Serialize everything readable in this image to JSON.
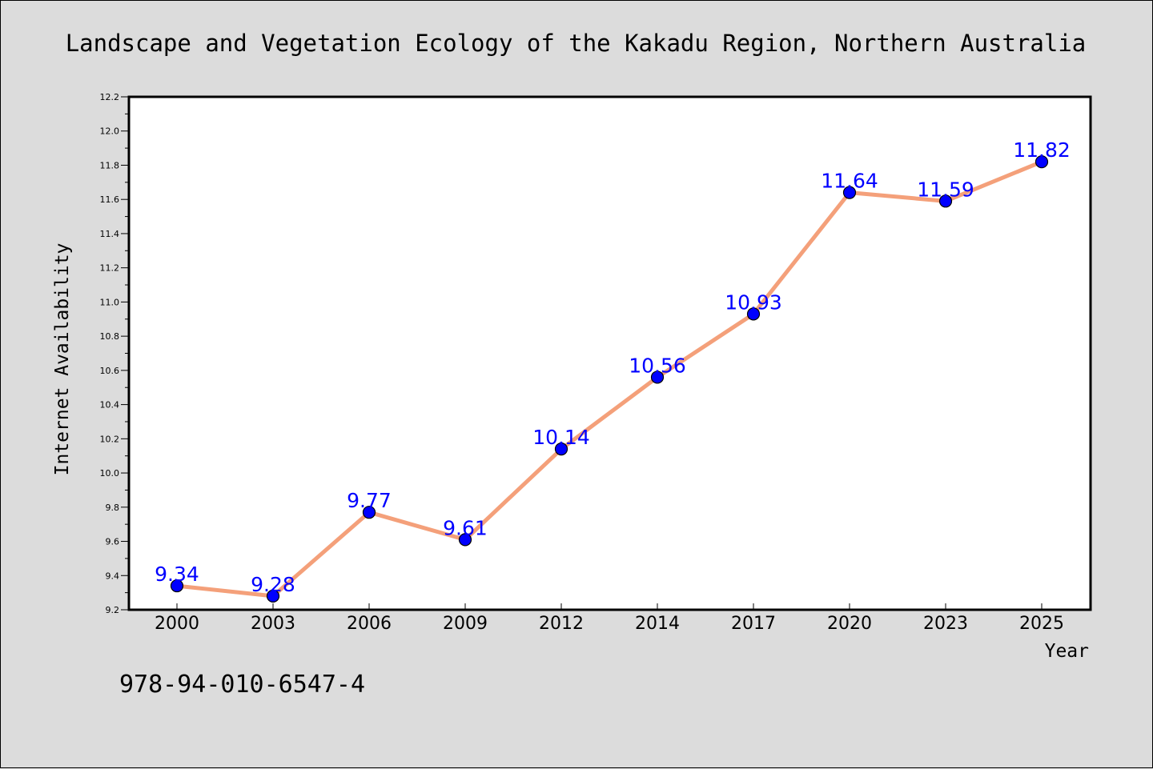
{
  "colors": {
    "background": "#dcdcdc",
    "plot_background": "#ffffff",
    "line": "#f4a07a",
    "marker": "#0000ff",
    "data_label": "#0000ff"
  },
  "footer": {
    "isbn": "978-94-010-6547-4"
  },
  "chart_data": {
    "type": "line",
    "title": "Landscape and Vegetation Ecology of the Kakadu Region, Northern Australia",
    "xlabel": "Year",
    "ylabel": "Internet Availability",
    "categories": [
      "2000",
      "2003",
      "2006",
      "2009",
      "2012",
      "2014",
      "2017",
      "2020",
      "2023",
      "2025"
    ],
    "series": [
      {
        "values": [
          9.34,
          9.28,
          9.77,
          9.61,
          10.14,
          10.56,
          10.93,
          11.64,
          11.59,
          11.82
        ]
      }
    ],
    "data_labels": [
      "9.34",
      "9.28",
      "9.77",
      "9.61",
      "10.14",
      "10.56",
      "10.93",
      "11.64",
      "11.59",
      "11.82"
    ],
    "ylim": [
      9.2,
      12.2
    ],
    "yticks": [
      "9.2",
      "9.4",
      "9.6",
      "9.8",
      "10.0",
      "10.2",
      "10.4",
      "10.6",
      "10.8",
      "11.0",
      "11.2",
      "11.4",
      "11.6",
      "11.8",
      "12.0",
      "12.2"
    ],
    "grid": false,
    "legend": "none"
  }
}
